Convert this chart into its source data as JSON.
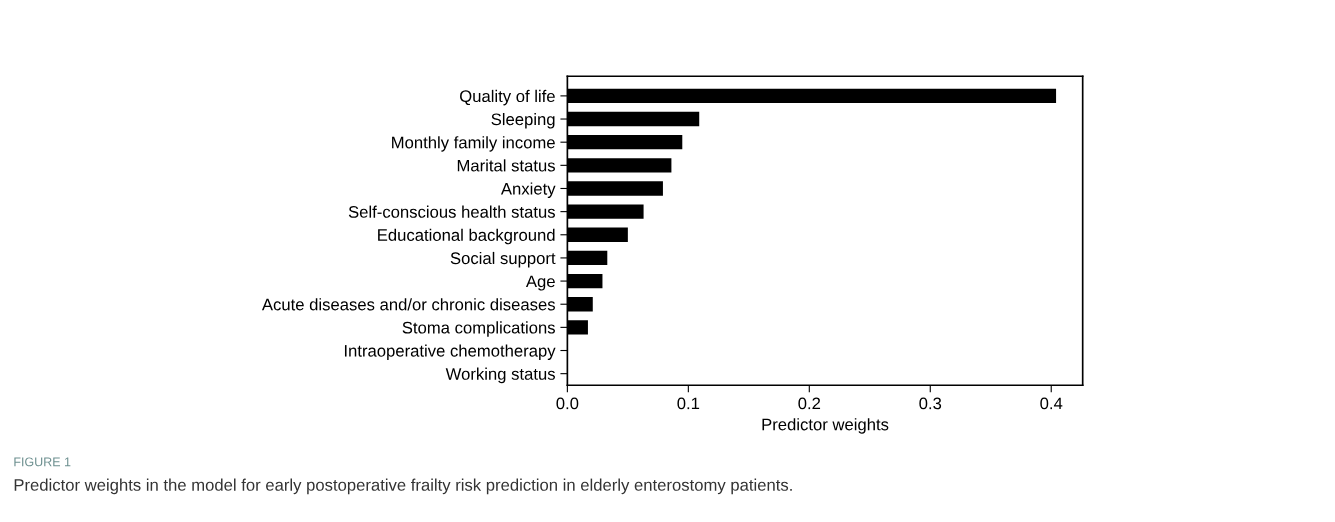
{
  "chart_data": {
    "type": "bar",
    "orientation": "horizontal",
    "xlabel": "Predictor weights",
    "categories": [
      "Quality of life",
      "Sleeping",
      "Monthly family income",
      "Marital status",
      "Anxiety",
      "Self-conscious health status",
      "Educational background",
      "Social support",
      "Age",
      "Acute diseases and/or chronic diseases",
      "Stoma complications",
      "Intraoperative chemotherapy",
      "Working status"
    ],
    "values": [
      0.404,
      0.109,
      0.095,
      0.086,
      0.079,
      0.063,
      0.05,
      0.033,
      0.029,
      0.021,
      0.017,
      0,
      0
    ],
    "color": "#000000",
    "xlim": [
      0,
      0.426
    ],
    "xticks": [
      {
        "value": 0,
        "label": "0.0"
      },
      0.1,
      0.2,
      0.3,
      0.4
    ],
    "grid": false,
    "annotations": [
      "FIGURE 1",
      "Predictor weights in the model for early postoperative frailty risk prediction in elderly enterostomy patients."
    ]
  }
}
